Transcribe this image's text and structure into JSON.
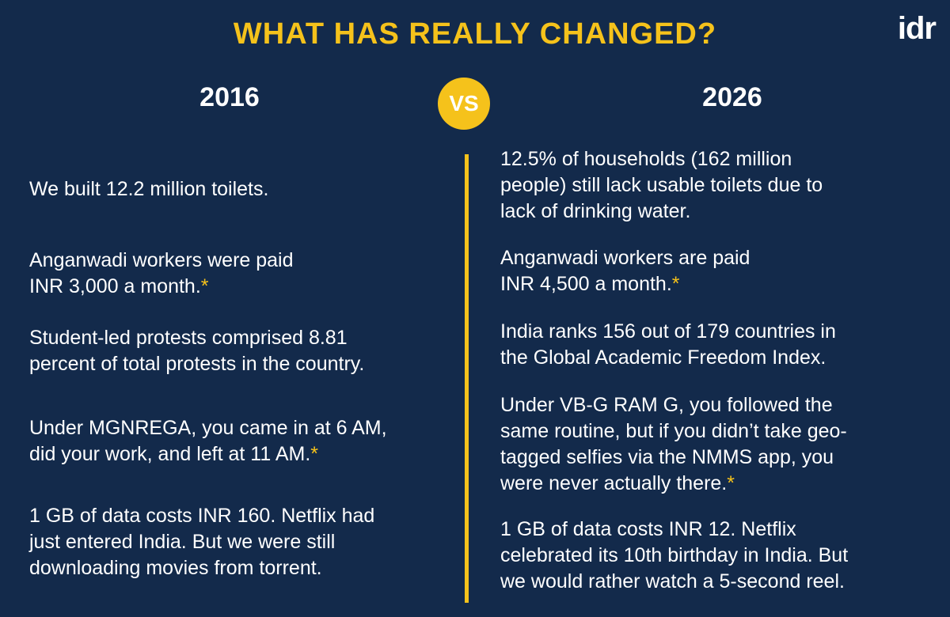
{
  "header": {
    "title": "WHAT HAS REALLY CHANGED?",
    "logo": "idr"
  },
  "comparison": {
    "left_heading": "2016",
    "versus": "VS",
    "right_heading": "2026",
    "left_items": [
      {
        "lines": [
          "We built 12.2 million toilets."
        ]
      },
      {
        "lines": [
          "Anganwadi workers were paid",
          "INR 3,000 a month."
        ],
        "mark": "*"
      },
      {
        "lines": [
          "Student-led protests comprised 8.81",
          "percent of total protests in the country."
        ]
      },
      {
        "lines": [
          "Under MGNREGA, you came in at 6 AM,",
          "did your work, and left at 11 AM."
        ],
        "mark": "*"
      },
      {
        "lines": [
          "1 GB of data costs INR 160. Netflix had",
          "just entered India. But we were still",
          "downloading movies from torrent."
        ]
      }
    ],
    "right_items": [
      {
        "lines": [
          "12.5% of households (162 million",
          "people) still lack usable toilets due to",
          "lack of drinking water."
        ]
      },
      {
        "lines": [
          "Anganwadi workers are paid",
          "INR 4,500 a month."
        ],
        "mark": "*"
      },
      {
        "lines": [
          "India ranks 156 out of 179 countries in",
          "the Global Academic Freedom Index."
        ]
      },
      {
        "lines": [
          "Under VB-G RAM G, you followed the",
          "same routine, but if you didn’t take geo-",
          "tagged selfies via the NMMS app, you",
          "were never actually there."
        ],
        "mark": "*"
      },
      {
        "lines": [
          "1 GB of data costs INR 12. Netflix",
          "celebrated its 10th birthday in India. But",
          "we would rather watch a 5-second reel."
        ]
      }
    ]
  }
}
